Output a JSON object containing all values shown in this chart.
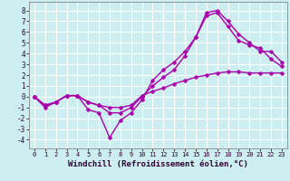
{
  "background_color": "#cceef0",
  "grid_color": "#ffffff",
  "line_color": "#aa00aa",
  "marker": "D",
  "marker_size": 2.5,
  "line_width": 1.0,
  "xlabel": "Windchill (Refroidissement éolien,°C)",
  "xlabel_fontsize": 6.5,
  "ytick_vals": [
    -4,
    -3,
    -2,
    -1,
    0,
    1,
    2,
    3,
    4,
    5,
    6,
    7,
    8
  ],
  "xtick_vals": [
    0,
    1,
    2,
    3,
    4,
    5,
    6,
    7,
    8,
    9,
    10,
    11,
    12,
    13,
    14,
    15,
    16,
    17,
    18,
    19,
    20,
    21,
    22,
    23
  ],
  "xlim": [
    -0.5,
    23.5
  ],
  "ylim": [
    -4.8,
    8.8
  ],
  "series1_x": [
    0,
    1,
    2,
    3,
    4,
    5,
    6,
    7,
    8,
    9,
    10,
    11,
    12,
    13,
    14,
    15,
    16,
    17,
    18,
    19,
    20,
    21,
    22,
    23
  ],
  "series1_y": [
    0,
    -1,
    -0.5,
    0.1,
    0.1,
    -1.2,
    -1.5,
    -3.8,
    -2.2,
    -1.5,
    -0.3,
    1.5,
    2.5,
    3.2,
    4.2,
    5.5,
    7.8,
    8.0,
    7.0,
    5.8,
    5.0,
    4.2,
    4.2,
    3.2
  ],
  "series2_x": [
    0,
    1,
    2,
    3,
    4,
    5,
    6,
    7,
    8,
    9,
    10,
    11,
    12,
    13,
    14,
    15,
    16,
    17,
    18,
    19,
    20,
    21,
    22,
    23
  ],
  "series2_y": [
    0,
    -0.8,
    -0.5,
    0.1,
    0.1,
    -0.5,
    -0.8,
    -1.0,
    -1.0,
    -0.8,
    0.1,
    0.5,
    0.8,
    1.2,
    1.5,
    1.8,
    2.0,
    2.2,
    2.3,
    2.3,
    2.2,
    2.2,
    2.2,
    2.2
  ],
  "series3_x": [
    0,
    1,
    2,
    3,
    4,
    5,
    6,
    7,
    8,
    9,
    10,
    11,
    12,
    13,
    14,
    15,
    16,
    17,
    18,
    19,
    20,
    21,
    22,
    23
  ],
  "series3_y": [
    0,
    -0.8,
    -0.5,
    0.1,
    0.1,
    -0.5,
    -0.8,
    -1.5,
    -1.5,
    -1.0,
    0.0,
    1.0,
    1.8,
    2.5,
    3.8,
    5.5,
    7.5,
    7.8,
    6.5,
    5.2,
    4.8,
    4.5,
    3.5,
    2.8
  ]
}
